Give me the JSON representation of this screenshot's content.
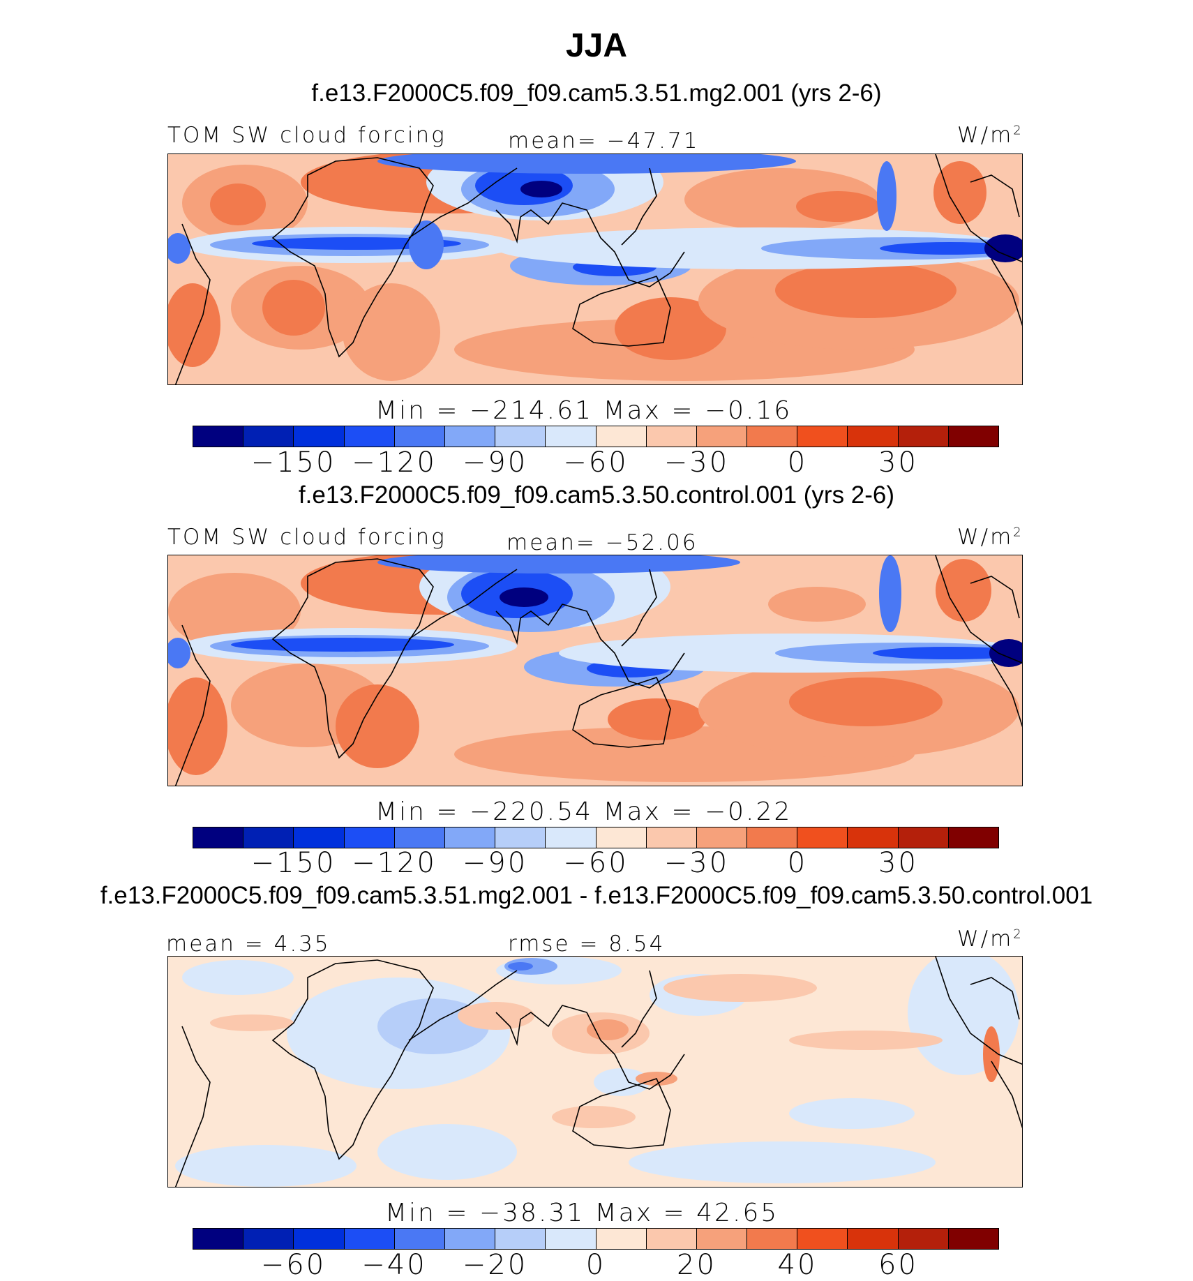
{
  "title": "JJA",
  "colorbar_colors": [
    "#00007f",
    "#0020b4",
    "#0030dc",
    "#1c4ef5",
    "#4a78f4",
    "#82a8f8",
    "#b6cef9",
    "#d9e8fb",
    "#fde7d5",
    "#fbc8ad",
    "#f6a17b",
    "#f27a4d",
    "#f0501e",
    "#d8330b",
    "#b4200b",
    "#800000"
  ],
  "panels": [
    {
      "subtitle": "f.e13.F2000C5.f09_f09.cam5.3.51.mg2.001 (yrs 2-6)",
      "left_label": "TOM SW cloud forcing",
      "center_label": "mean= −47.71",
      "units": "W/m",
      "units_sup": "2",
      "stats": "Min = −214.61 Max = −0.16",
      "ticks": [
        "−150",
        "−120",
        "−90",
        "−60",
        "−30",
        "0",
        "30"
      ],
      "levels": [
        -180,
        -165,
        -150,
        -135,
        -120,
        -105,
        -90,
        -75,
        -60,
        -45,
        -30,
        -15,
        0,
        15,
        30,
        45,
        60
      ]
    },
    {
      "subtitle": "f.e13.F2000C5.f09_f09.cam5.3.50.control.001 (yrs 2-6)",
      "left_label": "TOM SW cloud forcing",
      "center_label": "mean= −52.06",
      "units": "W/m",
      "units_sup": "2",
      "stats": "Min = −220.54 Max = −0.22",
      "ticks": [
        "−150",
        "−120",
        "−90",
        "−60",
        "−30",
        "0",
        "30"
      ],
      "levels": [
        -180,
        -165,
        -150,
        -135,
        -120,
        -105,
        -90,
        -75,
        -60,
        -45,
        -30,
        -15,
        0,
        15,
        30,
        45,
        60
      ]
    },
    {
      "subtitle": "f.e13.F2000C5.f09_f09.cam5.3.51.mg2.001 - f.e13.F2000C5.f09_f09.cam5.3.50.control.001",
      "left_label": "mean = 4.35",
      "center_label": "rmse = 8.54",
      "units": "W/m",
      "units_sup": "2",
      "stats": "Min = −38.31 Max = 42.65",
      "ticks": [
        "−60",
        "−40",
        "−20",
        "0",
        "20",
        "40",
        "60"
      ],
      "levels": [
        -80,
        -70,
        -60,
        -50,
        -40,
        -30,
        -20,
        -10,
        0,
        10,
        20,
        30,
        40,
        50,
        60,
        70,
        80
      ]
    }
  ]
}
